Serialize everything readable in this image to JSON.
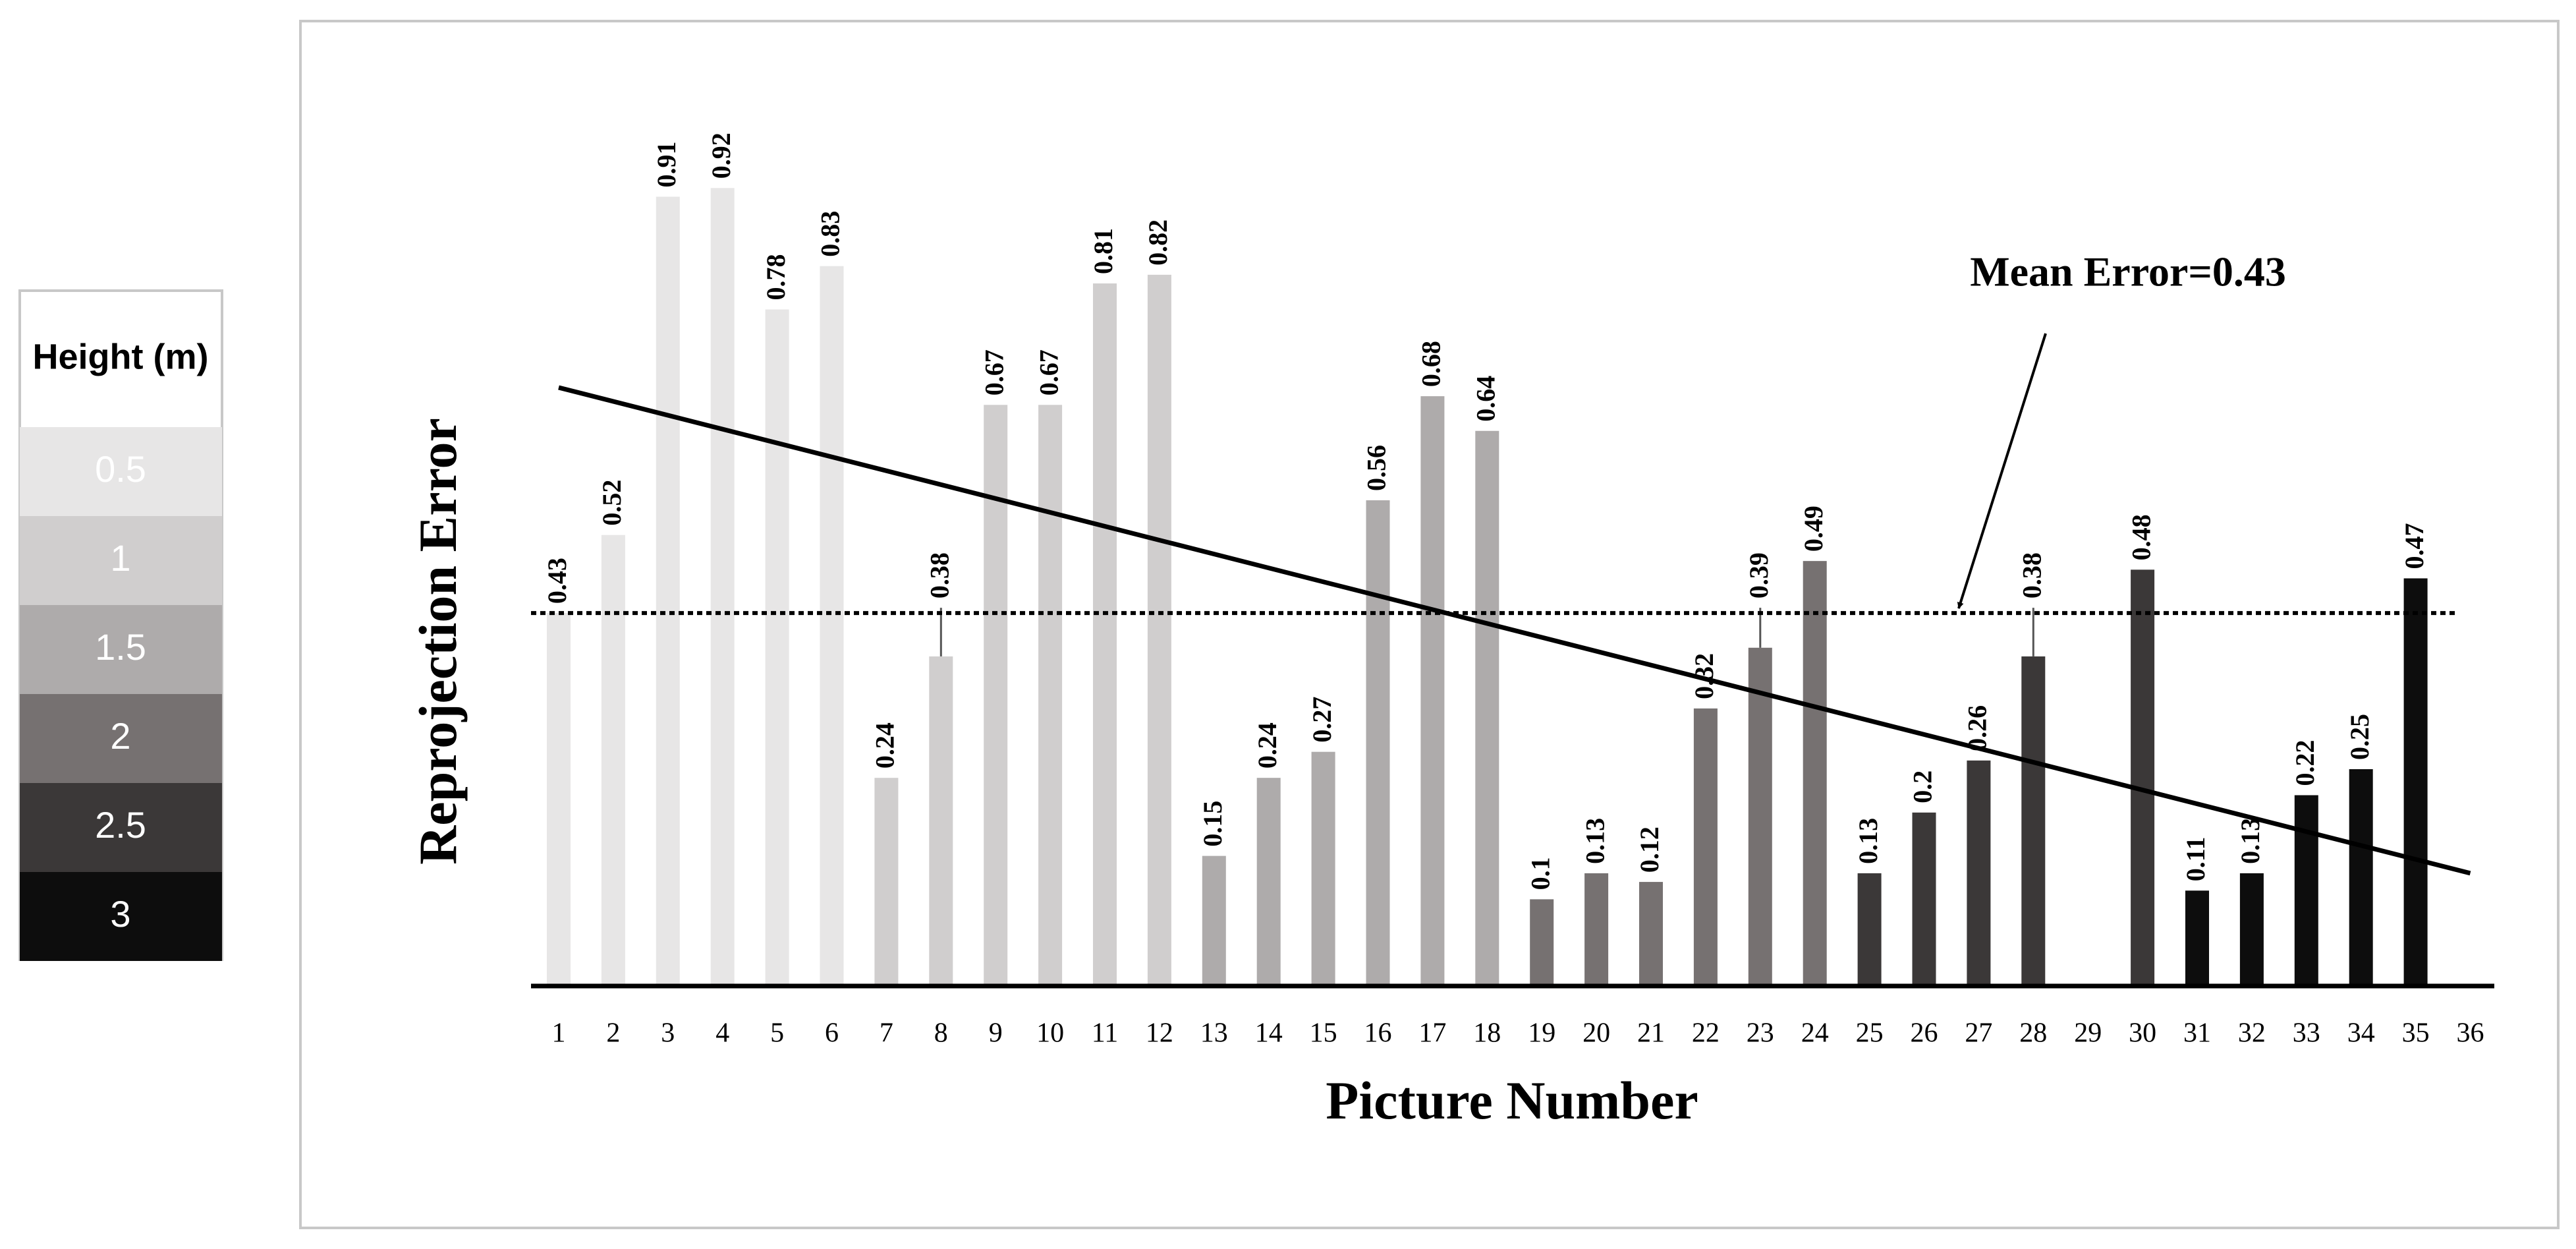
{
  "chart_data": {
    "type": "bar",
    "x_label": "Picture Number",
    "y_label": "Reprojection Error",
    "categories": [
      "1",
      "2",
      "3",
      "4",
      "5",
      "6",
      "7",
      "8",
      "9",
      "10",
      "11",
      "12",
      "13",
      "14",
      "15",
      "16",
      "17",
      "18",
      "19",
      "20",
      "21",
      "22",
      "23",
      "24",
      "25",
      "26",
      "27",
      "28",
      "29",
      "30",
      "31",
      "32",
      "33",
      "34",
      "35",
      "36"
    ],
    "values": [
      0.43,
      0.52,
      0.91,
      0.92,
      0.78,
      0.83,
      0.24,
      0.38,
      0.67,
      0.67,
      0.81,
      0.82,
      0.15,
      0.24,
      0.27,
      0.56,
      0.68,
      0.64,
      0.1,
      0.13,
      0.12,
      0.32,
      0.39,
      0.49,
      0.13,
      0.2,
      0.26,
      0.38,
      null,
      0.48,
      0.11,
      0.13,
      0.22,
      0.25,
      0.47,
      null
    ],
    "colors": [
      "#e7e6e6",
      "#e7e6e6",
      "#e7e6e6",
      "#e7e6e6",
      "#e7e6e6",
      "#e7e6e6",
      "#d0cece",
      "#d0cece",
      "#d0cece",
      "#d0cece",
      "#d0cece",
      "#d0cece",
      "#aeabab",
      "#aeabab",
      "#aeabab",
      "#aeabab",
      "#aeabab",
      "#aeabab",
      "#767171",
      "#767171",
      "#767171",
      "#767171",
      "#767171",
      "#767171",
      "#3b3838",
      "#3b3838",
      "#3b3838",
      "#3b3838",
      "#3b3838",
      "#3b3838",
      "#0d0d0d",
      "#0d0d0d",
      "#0d0d0d",
      "#0d0d0d",
      "#0d0d0d",
      "#0d0d0d"
    ],
    "ylim": [
      0,
      1
    ],
    "mean": 0.43,
    "annotation": "Mean Error=0.43",
    "trendline": {
      "x": [
        1,
        36
      ],
      "values": [
        0.69,
        0.13
      ]
    },
    "legend": {
      "title": "Height (m)",
      "items": [
        {
          "label": "0.5",
          "color": "#e7e6e6"
        },
        {
          "label": "1",
          "color": "#d0cece"
        },
        {
          "label": "1.5",
          "color": "#aeabab"
        },
        {
          "label": "2",
          "color": "#767171"
        },
        {
          "label": "2.5",
          "color": "#3b3838"
        },
        {
          "label": "3",
          "color": "#0d0d0d"
        }
      ]
    }
  }
}
